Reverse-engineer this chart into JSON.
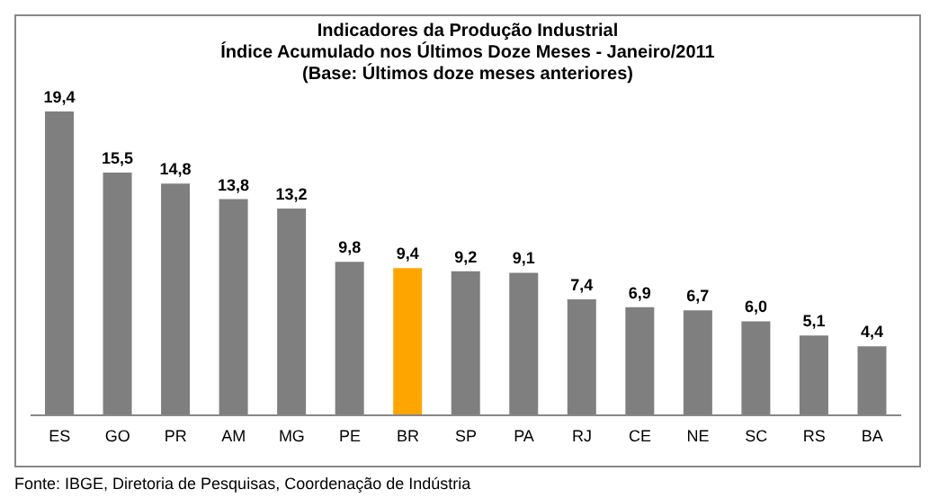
{
  "chart_data": {
    "type": "bar",
    "title": "Indicadores da Produção Industrial",
    "subtitle": "Índice Acumulado nos Últimos Doze Meses - Janeiro/2011\n(Base: Últimos doze meses anteriores)",
    "categories": [
      "ES",
      "GO",
      "PR",
      "AM",
      "MG",
      "PE",
      "BR",
      "SP",
      "PA",
      "RJ",
      "CE",
      "NE",
      "SC",
      "RS",
      "BA"
    ],
    "values": [
      19.4,
      15.5,
      14.8,
      13.8,
      13.2,
      9.8,
      9.4,
      9.2,
      9.1,
      7.4,
      6.9,
      6.7,
      6.0,
      5.1,
      4.4
    ],
    "value_labels": [
      "19,4",
      "15,5",
      "14,8",
      "13,8",
      "13,2",
      "9,8",
      "9,4",
      "9,2",
      "9,1",
      "7,4",
      "6,9",
      "6,7",
      "6,0",
      "5,1",
      "4,4"
    ],
    "colors": [
      "#7f7f7f",
      "#7f7f7f",
      "#7f7f7f",
      "#7f7f7f",
      "#7f7f7f",
      "#7f7f7f",
      "#ffa500",
      "#7f7f7f",
      "#7f7f7f",
      "#7f7f7f",
      "#7f7f7f",
      "#7f7f7f",
      "#7f7f7f",
      "#7f7f7f",
      "#7f7f7f"
    ],
    "grid": false,
    "legend": false,
    "annotations": [
      "Fonte: IBGE, Diretoria de Pesquisas, Coordenação de Indústria"
    ]
  }
}
